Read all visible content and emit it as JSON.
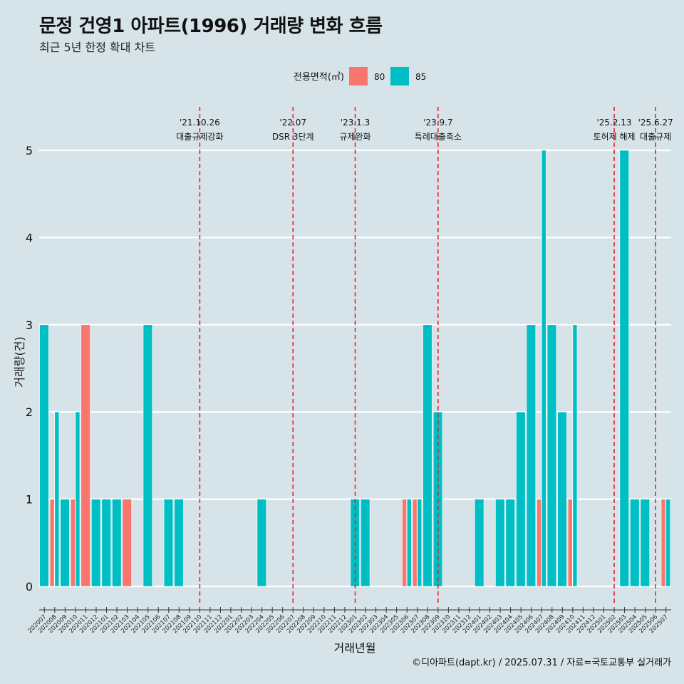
{
  "title": "문정 건영1 아파트(1996) 거래량 변화 흐름",
  "subtitle": "최근 5년 한정 확대 차트",
  "caption": "©디아파트(dapt.kr) / 2025.07.31 / 자료=국토교통부 실거래가",
  "colors": {
    "background": "#d6e4ea",
    "series_80": "#f8766d",
    "series_85": "#00bfc4",
    "event_line": "#e8242c",
    "grid": "#ffffff"
  },
  "chart_data": {
    "type": "bar",
    "xlabel": "거래년월",
    "ylabel": "거래량(건)",
    "ylim": [
      0,
      5
    ],
    "yticks": [
      0,
      1,
      2,
      3,
      4,
      5
    ],
    "legend": {
      "title": "전용면적(㎡)",
      "position": "top"
    },
    "grid": true,
    "categories": [
      "202007",
      "202008",
      "202009",
      "202010",
      "202011",
      "202012",
      "202101",
      "202102",
      "202103",
      "202104",
      "202105",
      "202106",
      "202107",
      "202108",
      "202109",
      "202110",
      "202111",
      "202112",
      "202201",
      "202202",
      "202203",
      "202204",
      "202205",
      "202206",
      "202207",
      "202208",
      "202209",
      "202210",
      "202211",
      "202212",
      "202301",
      "202302",
      "202303",
      "202304",
      "202305",
      "202306",
      "202307",
      "202308",
      "202309",
      "202310",
      "202311",
      "202312",
      "202401",
      "202402",
      "202403",
      "202404",
      "202405",
      "202406",
      "202407",
      "202408",
      "202409",
      "202410",
      "202411",
      "202412",
      "202501",
      "202502",
      "202503",
      "202504",
      "202505",
      "202506",
      "202507"
    ],
    "series": [
      {
        "name": "80",
        "values": [
          0,
          1,
          0,
          1,
          3,
          0,
          0,
          0,
          1,
          0,
          0,
          0,
          0,
          0,
          0,
          0,
          0,
          0,
          0,
          0,
          0,
          0,
          0,
          0,
          0,
          0,
          0,
          0,
          0,
          0,
          0,
          0,
          0,
          0,
          0,
          1,
          1,
          0,
          0,
          0,
          0,
          0,
          0,
          0,
          0,
          0,
          0,
          0,
          1,
          0,
          0,
          1,
          0,
          0,
          0,
          0,
          0,
          0,
          0,
          0,
          1
        ]
      },
      {
        "name": "85",
        "values": [
          3,
          2,
          1,
          2,
          0,
          1,
          1,
          1,
          0,
          0,
          3,
          0,
          1,
          1,
          0,
          0,
          0,
          0,
          0,
          0,
          0,
          1,
          0,
          0,
          0,
          0,
          0,
          0,
          0,
          0,
          1,
          1,
          0,
          0,
          0,
          1,
          1,
          3,
          2,
          0,
          0,
          0,
          1,
          0,
          1,
          1,
          2,
          3,
          5,
          3,
          2,
          3,
          0,
          0,
          0,
          0,
          5,
          1,
          1,
          0,
          1
        ]
      }
    ],
    "events": [
      {
        "date": "'21.10.26",
        "label": "대출규제강화",
        "month": "202110"
      },
      {
        "date": "'22.07",
        "label": "DSR 3단계",
        "month": "202207"
      },
      {
        "date": "'23.1.3",
        "label": "규제완화",
        "month": "202301"
      },
      {
        "date": "'23.9.7",
        "label": "특례대출축소",
        "month": "202309"
      },
      {
        "date": "'25.2.13",
        "label": "토허제 해제",
        "month": "202502"
      },
      {
        "date": "'25.6.27",
        "label": "대출규제",
        "month": "202506"
      }
    ]
  }
}
